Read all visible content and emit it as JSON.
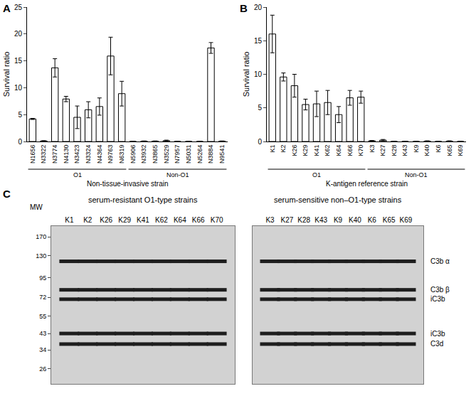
{
  "chart_data": [
    {
      "panel": "A",
      "type": "bar",
      "categories": [
        "N1656",
        "N3322",
        "N3774",
        "N4130",
        "N3423",
        "N3324",
        "N4364",
        "N9763",
        "N6319",
        "N5906",
        "N3932",
        "N3865",
        "N3529",
        "N7957",
        "N5031",
        "N5264",
        "N3884",
        "N9541"
      ],
      "values": [
        4.2,
        0.1,
        13.7,
        7.9,
        4.5,
        5.9,
        6.5,
        15.9,
        8.9,
        0,
        0.05,
        0.05,
        0.15,
        0,
        0,
        0,
        17.4,
        0.05
      ],
      "errors": [
        0.1,
        0.05,
        1.7,
        0.5,
        2.1,
        1.5,
        1.6,
        3.5,
        2.3,
        0,
        0.05,
        0.05,
        0.1,
        0,
        0,
        0,
        1.0,
        0.05
      ],
      "color": "#ffffff",
      "ylim": [
        0,
        25
      ],
      "yticks": [
        0,
        5,
        10,
        15,
        20,
        25
      ],
      "y_label": "Survival ratio",
      "groups": [
        {
          "label": "O1",
          "first": "N1656",
          "last": "N6319"
        },
        {
          "label": "Non-O1",
          "first": "N5906",
          "last": "N9541"
        }
      ],
      "group_title": "Non-tissue-invasive strain"
    },
    {
      "panel": "B",
      "type": "bar",
      "categories": [
        "K1",
        "K2",
        "K26",
        "K29",
        "K41",
        "K62",
        "K64",
        "K66",
        "K70",
        "K3",
        "K27",
        "K28",
        "K43",
        "K9",
        "K40",
        "K6",
        "K65",
        "K69"
      ],
      "values": [
        16.0,
        9.6,
        8.3,
        5.5,
        5.6,
        5.8,
        4.0,
        6.5,
        6.6,
        0.1,
        0.2,
        0,
        0,
        0,
        0.05,
        0,
        0.05,
        0
      ],
      "errors": [
        2.8,
        0.6,
        1.7,
        0.8,
        1.9,
        1.8,
        1.2,
        1.1,
        0.9,
        0.05,
        0.1,
        0,
        0,
        0,
        0.05,
        0,
        0.05,
        0
      ],
      "color": "#ffffff",
      "ylim": [
        0,
        20
      ],
      "yticks": [
        0,
        5,
        10,
        15,
        20
      ],
      "y_label": "Survival ratio",
      "groups": [
        {
          "label": "O1",
          "first": "K1",
          "last": "K70"
        },
        {
          "label": "Non-O1",
          "first": "K3",
          "last": "K69"
        }
      ],
      "group_title": "K-antigen reference strain"
    },
    {
      "panel": "C",
      "type": "blot",
      "title": "serum-resistant O1-type strains",
      "categories": [
        "K1",
        "K2",
        "K26",
        "K29",
        "K41",
        "K62",
        "K64",
        "K66",
        "K70"
      ],
      "y_label": "MW",
      "log": "y",
      "ylim": [
        21,
        198
      ],
      "yticks": [
        26,
        34,
        43,
        55,
        72,
        95,
        130,
        170
      ],
      "band_mw": [
        120,
        80,
        70,
        43,
        37
      ],
      "color": "#1e1e1e"
    },
    {
      "type": "blot",
      "title": "serum-sensitive non–O1-type strains",
      "categories": [
        "K3",
        "K27",
        "K28",
        "K43",
        "K9",
        "K40",
        "K6",
        "K65",
        "K69"
      ],
      "log": "y",
      "ylim": [
        21,
        198
      ],
      "tick_labels": "x",
      "band_mw": [
        120,
        80,
        70,
        43,
        37
      ],
      "band_labels": [
        "C3b α",
        "C3b β",
        "iC3b",
        "iC3b",
        "C3d"
      ],
      "color": "#1e1e1e"
    }
  ]
}
